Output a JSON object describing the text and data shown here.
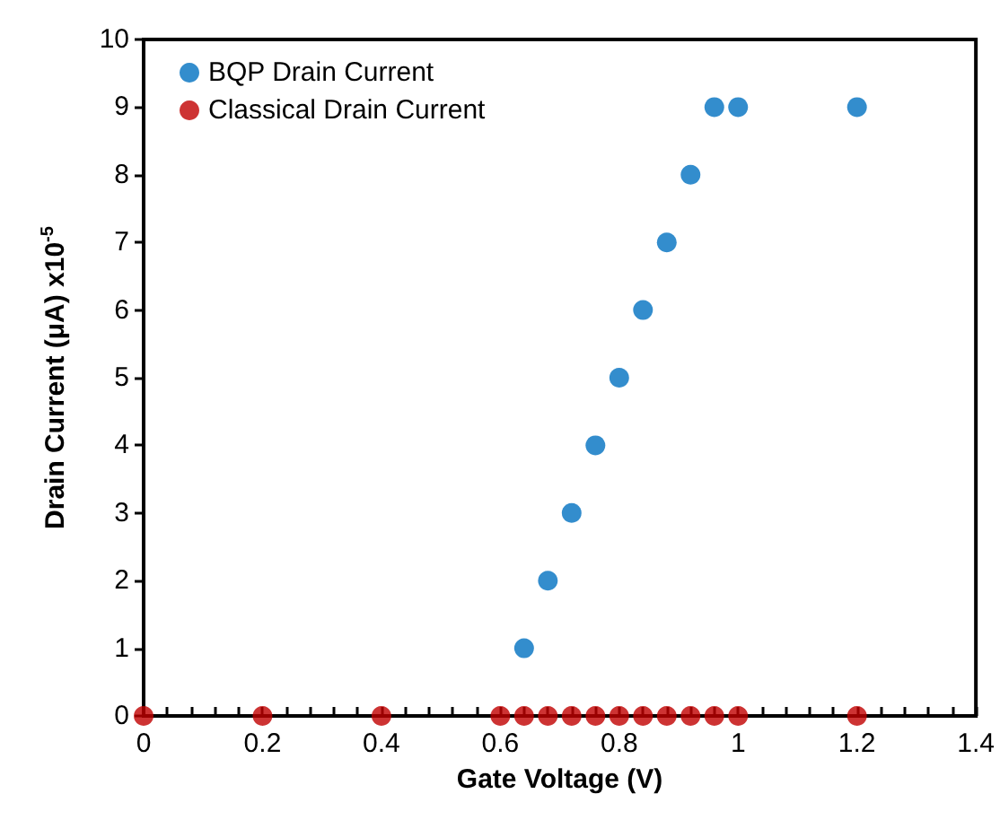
{
  "chart_data": {
    "type": "scatter",
    "xlabel": "Gate Voltage (V)",
    "ylabel": "Drain Current (μA) x10$^{-5}$",
    "series": [
      {
        "name": "BQP Drain Current",
        "color": "#0070c0",
        "x": [
          0.64,
          0.68,
          0.72,
          0.76,
          0.8,
          0.84,
          0.88,
          0.92,
          0.96,
          1.0,
          1.2
        ],
        "values": [
          1,
          2,
          3,
          4,
          5,
          6,
          7,
          8,
          9,
          9,
          9
        ]
      },
      {
        "name": "Classical Drain Current",
        "color": "#c00000",
        "x": [
          0,
          0.2,
          0.4,
          0.6,
          0.64,
          0.68,
          0.72,
          0.76,
          0.8,
          0.84,
          0.88,
          0.92,
          0.96,
          1.0,
          1.2
        ],
        "values": [
          0,
          0,
          0,
          0,
          0,
          0,
          0,
          0,
          0,
          0,
          0,
          0,
          0,
          0,
          0
        ]
      }
    ],
    "xlim": [
      0,
      1.4
    ],
    "xticks": [
      0,
      {
        "value": 0.04,
        "label": null
      },
      {
        "value": 0.08,
        "label": null
      },
      {
        "value": 0.12,
        "label": null
      },
      {
        "value": 0.16,
        "label": null
      },
      0.2,
      {
        "value": 0.24,
        "label": null
      },
      {
        "value": 0.28,
        "label": null
      },
      {
        "value": 0.32,
        "label": null
      },
      {
        "value": 0.36,
        "label": null
      },
      0.4,
      {
        "value": 0.44,
        "label": null
      },
      {
        "value": 0.48,
        "label": null
      },
      {
        "value": 0.52,
        "label": null
      },
      {
        "value": 0.56,
        "label": null
      },
      0.6,
      {
        "value": 0.64,
        "label": null
      },
      {
        "value": 0.68,
        "label": null
      },
      {
        "value": 0.72,
        "label": null
      },
      {
        "value": 0.76,
        "label": null
      },
      0.8,
      {
        "value": 0.84,
        "label": null
      },
      {
        "value": 0.88,
        "label": null
      },
      {
        "value": 0.92,
        "label": null
      },
      {
        "value": 0.96,
        "label": null
      },
      1,
      {
        "value": 1.04,
        "label": null
      },
      {
        "value": 1.08,
        "label": null
      },
      {
        "value": 1.12,
        "label": null
      },
      {
        "value": 1.16,
        "label": null
      },
      1.2,
      {
        "value": 1.24,
        "label": null
      },
      {
        "value": 1.28,
        "label": null
      },
      {
        "value": 1.32,
        "label": null
      },
      {
        "value": 1.36,
        "label": null
      },
      1.4
    ],
    "ylim": [
      0,
      10
    ],
    "yticks": [
      0,
      1,
      2,
      3,
      4,
      5,
      6,
      7,
      8,
      9,
      10
    ],
    "grid": false,
    "legend": "top left",
    "marker": "circle"
  }
}
